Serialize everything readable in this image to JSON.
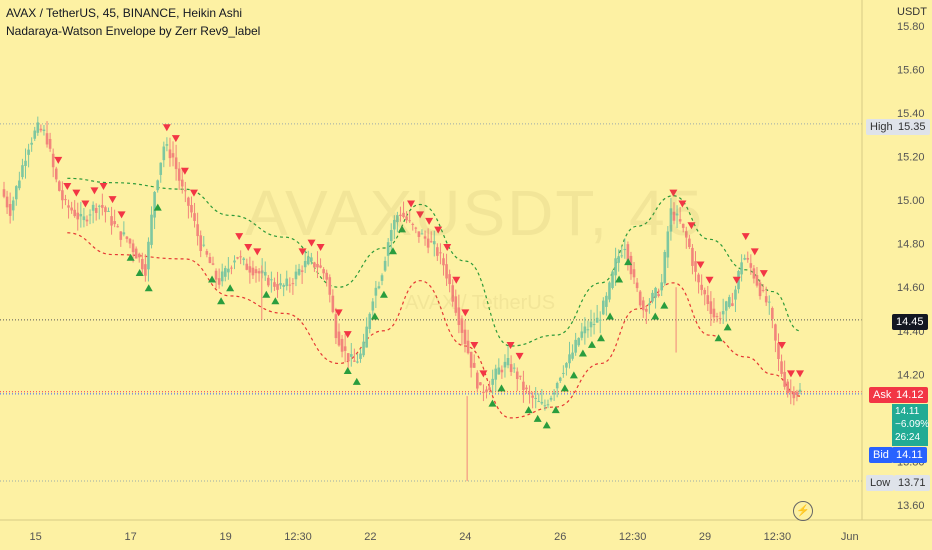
{
  "header": {
    "title": "AVAX / TetherUS, 45, BINANCE, Heikin Ashi",
    "indicator": "Nadaraya-Watson Envelope by Zerr Rev9_label"
  },
  "watermark": {
    "symbol": "AVAXUSDT, 45",
    "name": "AVAX / TetherUS"
  },
  "price_scale": {
    "unit": "USDT",
    "ticks": [
      "15.80",
      "15.60",
      "15.40",
      "15.20",
      "15.00",
      "14.80",
      "14.60",
      "14.40",
      "14.20",
      "14.00",
      "13.80",
      "13.60"
    ]
  },
  "time_axis": {
    "ticks": [
      "15",
      "17",
      "19",
      "12:30",
      "22",
      "24",
      "26",
      "12:30",
      "29",
      "12:30",
      "Jun"
    ]
  },
  "markers": {
    "high": {
      "label": "High",
      "value": "15.35"
    },
    "current": {
      "value": "14.45"
    },
    "ask": {
      "label": "Ask",
      "value": "14.12"
    },
    "last": {
      "value": "14.11",
      "change": "−6.09%",
      "countdown": "26:24"
    },
    "bid": {
      "label": "Bid",
      "value": "14.11"
    },
    "low": {
      "label": "Low",
      "value": "13.71"
    }
  },
  "colors": {
    "background": "#fdf1a3",
    "bull": "#7ec7a0",
    "bear": "#f2857b",
    "upper_band": "#2e9a3a",
    "lower_band": "#e53935",
    "sell_signal": "#f23645",
    "buy_signal": "#2a9d3e",
    "ask_tag": "#f23645",
    "last_tag": "#22ab94",
    "bid_tag": "#2962ff"
  },
  "chart_data": {
    "type": "candlestick",
    "title": "AVAX / TetherUS, 45, BINANCE, Heikin Ashi",
    "ylim": [
      13.5,
      15.85
    ],
    "xlim": [
      0,
      100
    ],
    "x_ticks": [
      {
        "x": 3.5,
        "label": "15"
      },
      {
        "x": 14,
        "label": "17"
      },
      {
        "x": 24.5,
        "label": "19"
      },
      {
        "x": 32.5,
        "label": "12:30"
      },
      {
        "x": 40.5,
        "label": "22"
      },
      {
        "x": 51,
        "label": "24"
      },
      {
        "x": 61.5,
        "label": "26"
      },
      {
        "x": 69.5,
        "label": "12:30"
      },
      {
        "x": 77.5,
        "label": "29"
      },
      {
        "x": 85.5,
        "label": "12:30"
      },
      {
        "x": 93.5,
        "label": "Jun"
      }
    ],
    "close_path": [
      [
        0,
        15.05
      ],
      [
        1,
        14.95
      ],
      [
        2,
        15.1
      ],
      [
        3,
        15.25
      ],
      [
        4,
        15.33
      ],
      [
        5,
        15.3
      ],
      [
        6,
        15.1
      ],
      [
        7,
        14.98
      ],
      [
        8,
        14.95
      ],
      [
        9,
        14.9
      ],
      [
        10,
        14.96
      ],
      [
        11,
        14.98
      ],
      [
        12,
        14.92
      ],
      [
        13,
        14.85
      ],
      [
        14,
        14.82
      ],
      [
        15,
        14.75
      ],
      [
        16,
        14.68
      ],
      [
        17,
        15.05
      ],
      [
        18,
        15.25
      ],
      [
        19,
        15.2
      ],
      [
        20,
        15.05
      ],
      [
        21,
        14.95
      ],
      [
        22,
        14.8
      ],
      [
        23,
        14.72
      ],
      [
        24,
        14.62
      ],
      [
        25,
        14.68
      ],
      [
        26,
        14.75
      ],
      [
        27,
        14.7
      ],
      [
        28,
        14.68
      ],
      [
        29,
        14.65
      ],
      [
        30,
        14.62
      ],
      [
        31,
        14.6
      ],
      [
        32,
        14.62
      ],
      [
        33,
        14.68
      ],
      [
        34,
        14.72
      ],
      [
        35,
        14.7
      ],
      [
        36,
        14.65
      ],
      [
        37,
        14.4
      ],
      [
        38,
        14.3
      ],
      [
        39,
        14.25
      ],
      [
        40,
        14.3
      ],
      [
        41,
        14.55
      ],
      [
        42,
        14.65
      ],
      [
        43,
        14.85
      ],
      [
        44,
        14.95
      ],
      [
        45,
        14.9
      ],
      [
        46,
        14.85
      ],
      [
        47,
        14.82
      ],
      [
        48,
        14.78
      ],
      [
        49,
        14.7
      ],
      [
        50,
        14.55
      ],
      [
        51,
        14.4
      ],
      [
        52,
        14.25
      ],
      [
        53,
        14.12
      ],
      [
        54,
        14.15
      ],
      [
        55,
        14.22
      ],
      [
        56,
        14.25
      ],
      [
        57,
        14.2
      ],
      [
        58,
        14.12
      ],
      [
        59,
        14.08
      ],
      [
        60,
        14.05
      ],
      [
        61,
        14.12
      ],
      [
        62,
        14.22
      ],
      [
        63,
        14.28
      ],
      [
        64,
        14.38
      ],
      [
        65,
        14.42
      ],
      [
        66,
        14.45
      ],
      [
        67,
        14.55
      ],
      [
        68,
        14.72
      ],
      [
        69,
        14.8
      ],
      [
        70,
        14.62
      ],
      [
        71,
        14.5
      ],
      [
        72,
        14.55
      ],
      [
        73,
        14.6
      ],
      [
        74,
        14.95
      ],
      [
        75,
        14.9
      ],
      [
        76,
        14.8
      ],
      [
        77,
        14.62
      ],
      [
        78,
        14.55
      ],
      [
        79,
        14.45
      ],
      [
        80,
        14.5
      ],
      [
        81,
        14.55
      ],
      [
        82,
        14.75
      ],
      [
        83,
        14.68
      ],
      [
        84,
        14.58
      ],
      [
        85,
        14.5
      ],
      [
        86,
        14.25
      ],
      [
        87,
        14.12
      ],
      [
        88,
        14.12
      ]
    ],
    "series": [
      {
        "name": "",
        "x": [
          7,
          12,
          20,
          25,
          31,
          37,
          42,
          46,
          51,
          56,
          61,
          66,
          70,
          74,
          78,
          82,
          85,
          88
        ],
        "values": [
          15.1,
          15.08,
          15.05,
          14.93,
          14.83,
          14.6,
          14.78,
          14.98,
          14.72,
          14.33,
          14.38,
          14.62,
          14.88,
          15.02,
          14.82,
          14.68,
          14.58,
          14.4
        ]
      },
      {
        "name": "",
        "x": [
          7,
          12,
          20,
          25,
          31,
          37,
          42,
          46,
          51,
          56,
          61,
          66,
          70,
          74,
          78,
          82,
          85,
          88
        ],
        "values": [
          14.85,
          14.75,
          14.73,
          14.56,
          14.48,
          14.25,
          14.4,
          14.63,
          14.33,
          14.0,
          14.05,
          14.25,
          14.5,
          14.62,
          14.38,
          14.28,
          14.2,
          14.1
        ]
      }
    ],
    "sell_signals_x": [
      6,
      7,
      8,
      9,
      10,
      11,
      12,
      13,
      18,
      19,
      20,
      21,
      26,
      27,
      28,
      33,
      34,
      35,
      37,
      38,
      45,
      46,
      47,
      48,
      49,
      50,
      51,
      52,
      53,
      56,
      57,
      74,
      75,
      76,
      77,
      78,
      81,
      82,
      83,
      84,
      86,
      87,
      88
    ],
    "buy_signals_x": [
      14,
      15,
      16,
      17,
      23,
      24,
      25,
      29,
      30,
      38,
      39,
      41,
      42,
      43,
      44,
      54,
      55,
      58,
      59,
      60,
      61,
      62,
      63,
      64,
      65,
      66,
      67,
      68,
      69,
      72,
      73,
      79,
      80
    ]
  }
}
